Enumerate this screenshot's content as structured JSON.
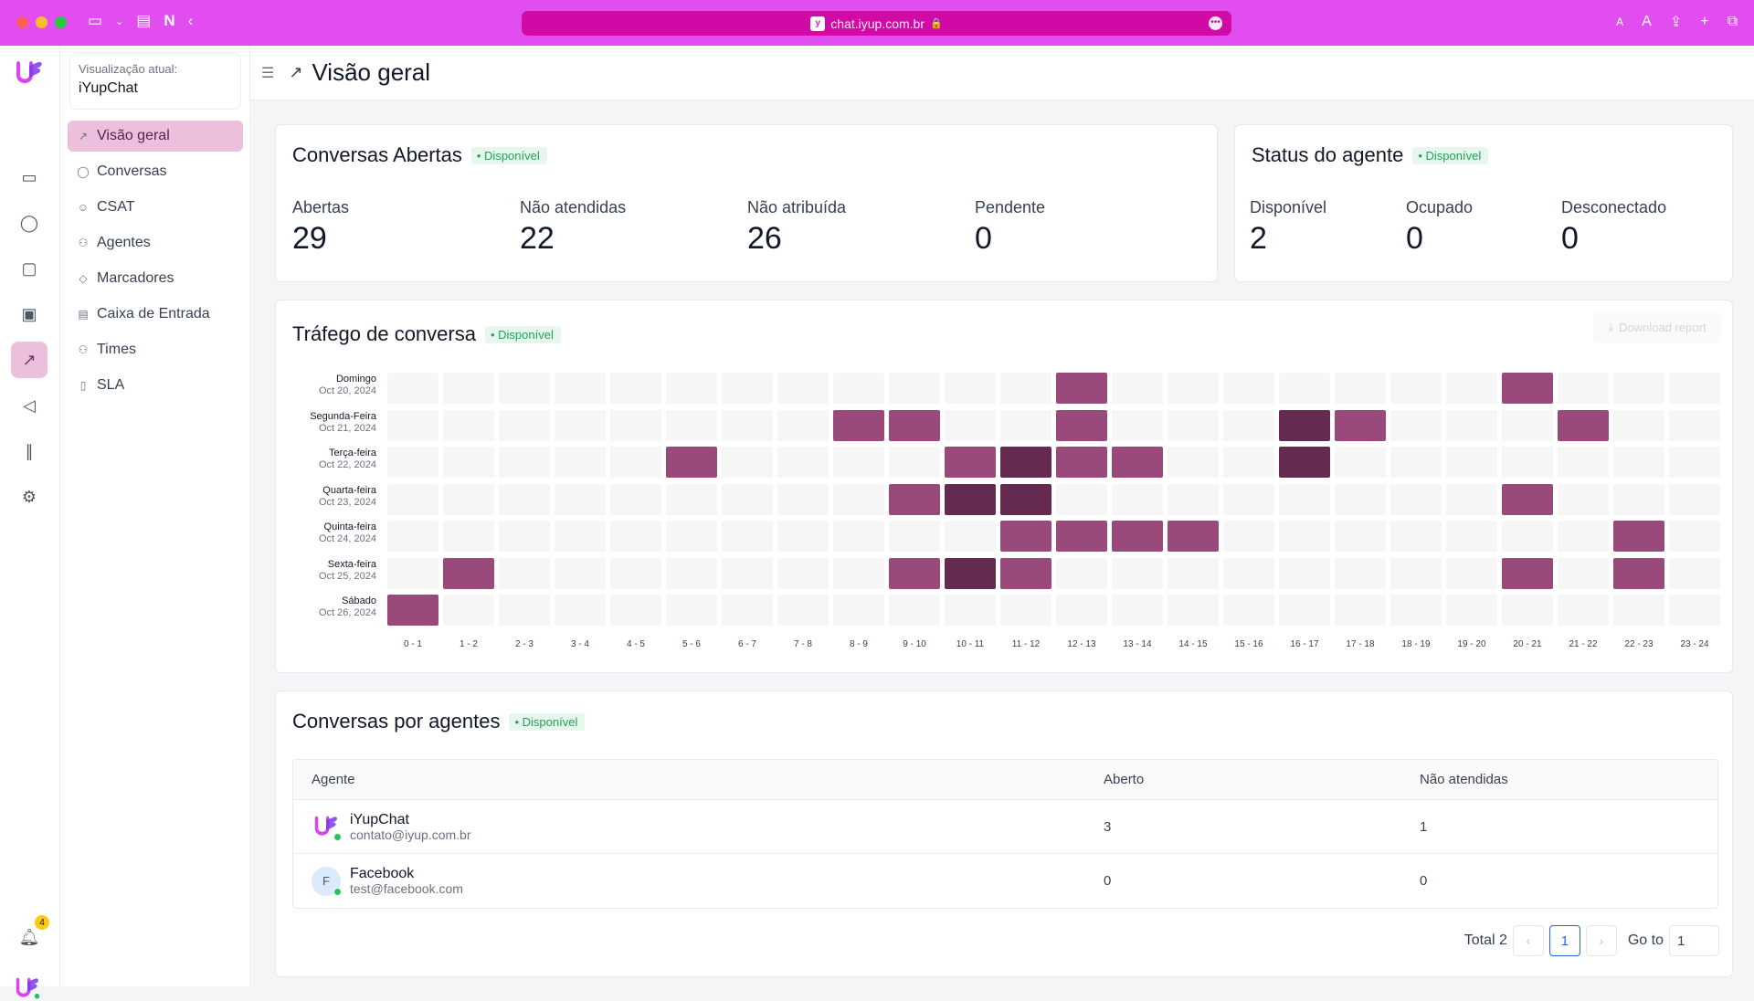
{
  "browser": {
    "url": "chat.iyup.com.br",
    "aa_small": "A",
    "aa_large": "A"
  },
  "sidebar": {
    "view_label": "Visualização atual:",
    "view_value": "iYupChat",
    "items": [
      {
        "label": "Visão geral",
        "icon": "chart-icon",
        "active": true
      },
      {
        "label": "Conversas",
        "icon": "chat-icon"
      },
      {
        "label": "CSAT",
        "icon": "smile-icon"
      },
      {
        "label": "Agentes",
        "icon": "users-icon"
      },
      {
        "label": "Marcadores",
        "icon": "tag-icon"
      },
      {
        "label": "Caixa de Entrada",
        "icon": "inbox-icon"
      },
      {
        "label": "Times",
        "icon": "team-icon"
      },
      {
        "label": "SLA",
        "icon": "document-icon"
      }
    ]
  },
  "rail": {
    "notification_count": "4"
  },
  "header": {
    "title": "Visão geral"
  },
  "open_conversations": {
    "title": "Conversas Abertas",
    "badge": "• Disponível",
    "metrics": [
      {
        "label": "Abertas",
        "value": "29"
      },
      {
        "label": "Não atendidas",
        "value": "22"
      },
      {
        "label": "Não atribuída",
        "value": "26"
      },
      {
        "label": "Pendente",
        "value": "0"
      }
    ]
  },
  "agent_status": {
    "title": "Status do agente",
    "badge": "• Disponível",
    "metrics": [
      {
        "label": "Disponível",
        "value": "2"
      },
      {
        "label": "Ocupado",
        "value": "0"
      },
      {
        "label": "Desconectado",
        "value": "0"
      }
    ]
  },
  "traffic": {
    "title": "Tráfego de conversa",
    "badge": "• Disponível",
    "download_label": "Download report"
  },
  "chart_data": {
    "type": "heatmap",
    "title": "Tráfego de conversa",
    "x": [
      "0 - 1",
      "1 - 2",
      "2 - 3",
      "3 - 4",
      "4 - 5",
      "5 - 6",
      "6 - 7",
      "7 - 8",
      "8 - 9",
      "9 - 10",
      "10 - 11",
      "11 - 12",
      "12 - 13",
      "13 - 14",
      "14 - 15",
      "15 - 16",
      "16 - 17",
      "17 - 18",
      "18 - 19",
      "19 - 20",
      "20 - 21",
      "21 - 22",
      "22 - 23",
      "23 - 24"
    ],
    "rows": [
      {
        "day": "Domingo",
        "date": "Oct 20, 2024"
      },
      {
        "day": "Segunda-Feira",
        "date": "Oct 21, 2024"
      },
      {
        "day": "Terça-feira",
        "date": "Oct 22, 2024"
      },
      {
        "day": "Quarta-feira",
        "date": "Oct 23, 2024"
      },
      {
        "day": "Quinta-feira",
        "date": "Oct 24, 2024"
      },
      {
        "day": "Sexta-feira",
        "date": "Oct 25, 2024"
      },
      {
        "day": "Sábado",
        "date": "Oct 26, 2024"
      }
    ],
    "values": [
      [
        0,
        0,
        0,
        0,
        0,
        0,
        0,
        0,
        0,
        0,
        0,
        0,
        1,
        0,
        0,
        0,
        0,
        0,
        0,
        0,
        1,
        0,
        0,
        0
      ],
      [
        0,
        0,
        0,
        0,
        0,
        0,
        0,
        0,
        1,
        1,
        0,
        0,
        1,
        0,
        0,
        0,
        2,
        1,
        0,
        0,
        0,
        1,
        0,
        0
      ],
      [
        0,
        0,
        0,
        0,
        0,
        1,
        0,
        0,
        0,
        0,
        1,
        2,
        1,
        1,
        0,
        0,
        2,
        0,
        0,
        0,
        0,
        0,
        0,
        0
      ],
      [
        0,
        0,
        0,
        0,
        0,
        0,
        0,
        0,
        0,
        1,
        2,
        2,
        0,
        0,
        0,
        0,
        0,
        0,
        0,
        0,
        1,
        0,
        0,
        0
      ],
      [
        0,
        0,
        0,
        0,
        0,
        0,
        0,
        0,
        0,
        0,
        0,
        1,
        1,
        1,
        1,
        0,
        0,
        0,
        0,
        0,
        0,
        0,
        1,
        0
      ],
      [
        0,
        1,
        0,
        0,
        0,
        0,
        0,
        0,
        0,
        1,
        2,
        1,
        0,
        0,
        0,
        0,
        0,
        0,
        0,
        0,
        1,
        0,
        1,
        0
      ],
      [
        1,
        0,
        0,
        0,
        0,
        0,
        0,
        0,
        0,
        0,
        0,
        0,
        0,
        0,
        0,
        0,
        0,
        0,
        0,
        0,
        0,
        0,
        0,
        0
      ]
    ],
    "colors": [
      "#f6f6f7",
      "#9a4a7a",
      "#652a4f"
    ]
  },
  "agents_table": {
    "title": "Conversas por agentes",
    "badge": "• Disponível",
    "headers": {
      "agent": "Agente",
      "open": "Aberto",
      "unattended": "Não atendidas"
    },
    "rows": [
      {
        "name": "iYupChat",
        "email": "contato@iyup.com.br",
        "open": "3",
        "unattended": "1",
        "avatar": "logo"
      },
      {
        "name": "Facebook",
        "email": "test@facebook.com",
        "open": "0",
        "unattended": "0",
        "avatar": "F"
      }
    ],
    "total_label": "Total 2",
    "current_page": "1",
    "goto_label": "Go to",
    "goto_value": "1"
  }
}
